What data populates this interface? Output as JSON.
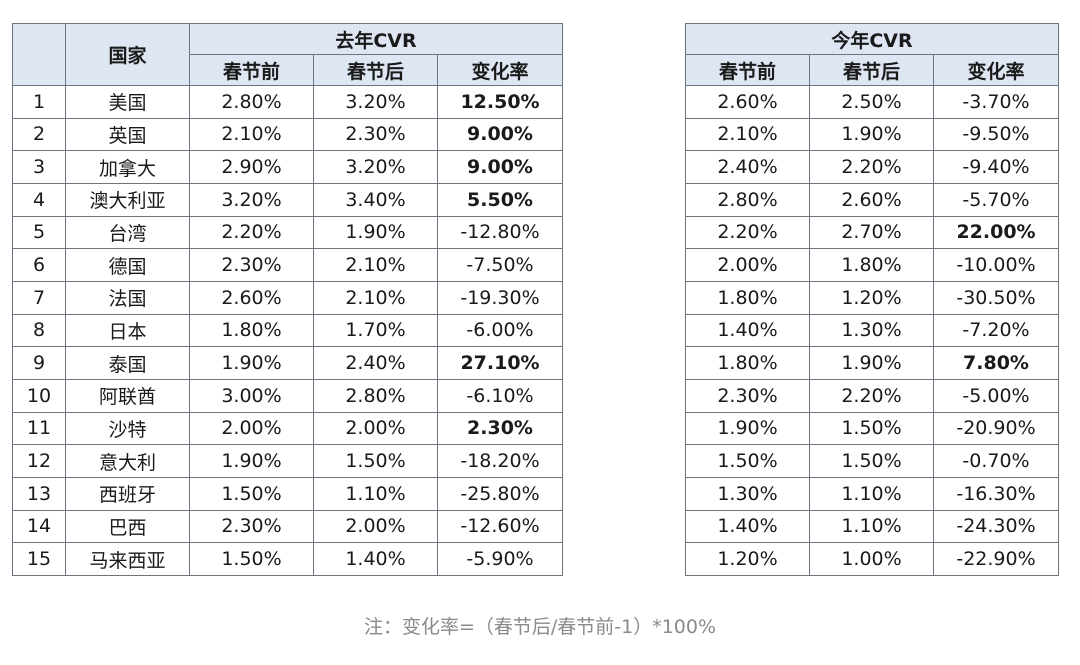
{
  "headers": {
    "country": "国家",
    "last_year": "去年CVR",
    "this_year": "今年CVR",
    "before": "春节前",
    "after": "春节后",
    "change": "变化率"
  },
  "rows": [
    {
      "idx": "1",
      "country": "美国",
      "ly_before": "2.80%",
      "ly_after": "3.20%",
      "ly_change": "12.50%",
      "ly_bold": true,
      "ty_before": "2.60%",
      "ty_after": "2.50%",
      "ty_change": "-3.70%",
      "ty_bold": false
    },
    {
      "idx": "2",
      "country": "英国",
      "ly_before": "2.10%",
      "ly_after": "2.30%",
      "ly_change": "9.00%",
      "ly_bold": true,
      "ty_before": "2.10%",
      "ty_after": "1.90%",
      "ty_change": "-9.50%",
      "ty_bold": false
    },
    {
      "idx": "3",
      "country": "加拿大",
      "ly_before": "2.90%",
      "ly_after": "3.20%",
      "ly_change": "9.00%",
      "ly_bold": true,
      "ty_before": "2.40%",
      "ty_after": "2.20%",
      "ty_change": "-9.40%",
      "ty_bold": false
    },
    {
      "idx": "4",
      "country": "澳大利亚",
      "ly_before": "3.20%",
      "ly_after": "3.40%",
      "ly_change": "5.50%",
      "ly_bold": true,
      "ty_before": "2.80%",
      "ty_after": "2.60%",
      "ty_change": "-5.70%",
      "ty_bold": false
    },
    {
      "idx": "5",
      "country": "台湾",
      "ly_before": "2.20%",
      "ly_after": "1.90%",
      "ly_change": "-12.80%",
      "ly_bold": false,
      "ty_before": "2.20%",
      "ty_after": "2.70%",
      "ty_change": "22.00%",
      "ty_bold": true
    },
    {
      "idx": "6",
      "country": "德国",
      "ly_before": "2.30%",
      "ly_after": "2.10%",
      "ly_change": "-7.50%",
      "ly_bold": false,
      "ty_before": "2.00%",
      "ty_after": "1.80%",
      "ty_change": "-10.00%",
      "ty_bold": false
    },
    {
      "idx": "7",
      "country": "法国",
      "ly_before": "2.60%",
      "ly_after": "2.10%",
      "ly_change": "-19.30%",
      "ly_bold": false,
      "ty_before": "1.80%",
      "ty_after": "1.20%",
      "ty_change": "-30.50%",
      "ty_bold": false
    },
    {
      "idx": "8",
      "country": "日本",
      "ly_before": "1.80%",
      "ly_after": "1.70%",
      "ly_change": "-6.00%",
      "ly_bold": false,
      "ty_before": "1.40%",
      "ty_after": "1.30%",
      "ty_change": "-7.20%",
      "ty_bold": false
    },
    {
      "idx": "9",
      "country": "泰国",
      "ly_before": "1.90%",
      "ly_after": "2.40%",
      "ly_change": "27.10%",
      "ly_bold": true,
      "ty_before": "1.80%",
      "ty_after": "1.90%",
      "ty_change": "7.80%",
      "ty_bold": true
    },
    {
      "idx": "10",
      "country": "阿联酋",
      "ly_before": "3.00%",
      "ly_after": "2.80%",
      "ly_change": "-6.10%",
      "ly_bold": false,
      "ty_before": "2.30%",
      "ty_after": "2.20%",
      "ty_change": "-5.00%",
      "ty_bold": false
    },
    {
      "idx": "11",
      "country": "沙特",
      "ly_before": "2.00%",
      "ly_after": "2.00%",
      "ly_change": "2.30%",
      "ly_bold": true,
      "ty_before": "1.90%",
      "ty_after": "1.50%",
      "ty_change": "-20.90%",
      "ty_bold": false
    },
    {
      "idx": "12",
      "country": "意大利",
      "ly_before": "1.90%",
      "ly_after": "1.50%",
      "ly_change": "-18.20%",
      "ly_bold": false,
      "ty_before": "1.50%",
      "ty_after": "1.50%",
      "ty_change": "-0.70%",
      "ty_bold": false
    },
    {
      "idx": "13",
      "country": "西班牙",
      "ly_before": "1.50%",
      "ly_after": "1.10%",
      "ly_change": "-25.80%",
      "ly_bold": false,
      "ty_before": "1.30%",
      "ty_after": "1.10%",
      "ty_change": "-16.30%",
      "ty_bold": false
    },
    {
      "idx": "14",
      "country": "巴西",
      "ly_before": "2.30%",
      "ly_after": "2.00%",
      "ly_change": "-12.60%",
      "ly_bold": false,
      "ty_before": "1.40%",
      "ty_after": "1.10%",
      "ty_change": "-24.30%",
      "ty_bold": false
    },
    {
      "idx": "15",
      "country": "马来西亚",
      "ly_before": "1.50%",
      "ly_after": "1.40%",
      "ly_change": "-5.90%",
      "ly_bold": false,
      "ty_before": "1.20%",
      "ty_after": "1.00%",
      "ty_change": "-22.90%",
      "ty_bold": false
    }
  ],
  "footnote": "注：变化率=（春节后/春节前-1）*100%",
  "colors": {
    "header_fill": "#dde6f2",
    "border": "#6d7480",
    "footnote": "#8a8a8a"
  }
}
